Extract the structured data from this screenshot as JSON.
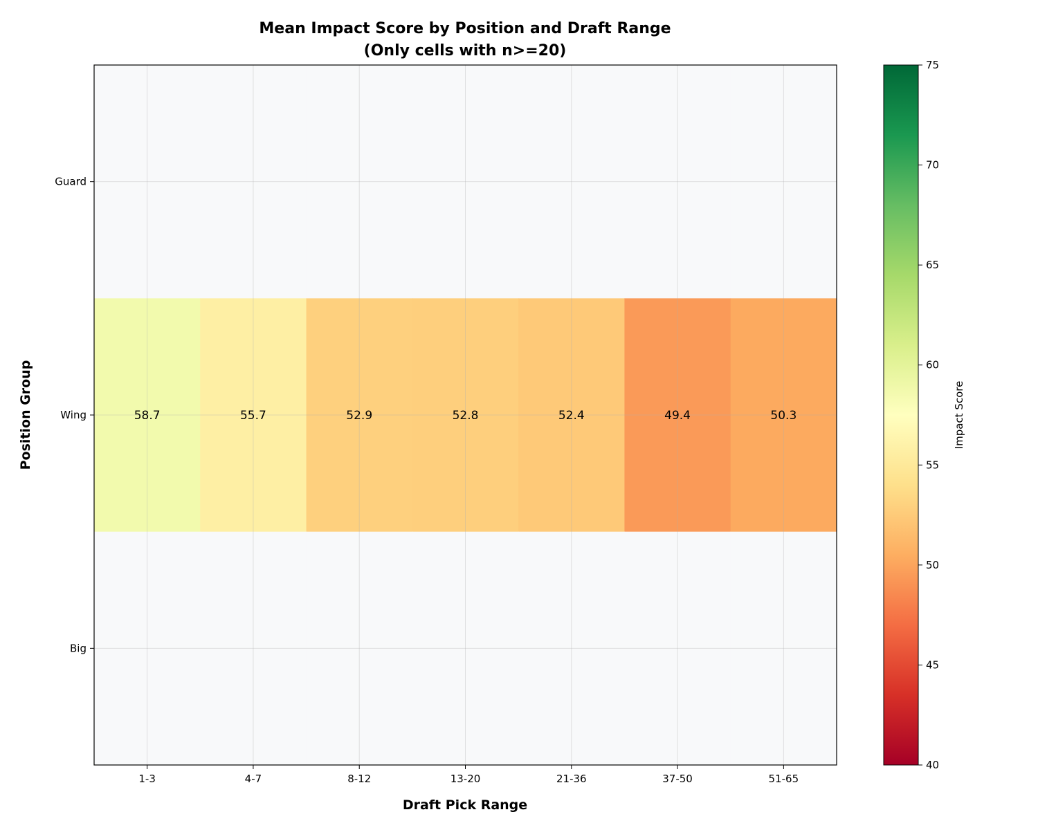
{
  "chart_data": {
    "type": "heatmap",
    "title": "Mean Impact Score by Position and Draft Range",
    "subtitle": "(Only cells with n>=20)",
    "xlabel": "Draft Pick Range",
    "ylabel": "Position Group",
    "x_categories": [
      "1-3",
      "4-7",
      "8-12",
      "13-20",
      "21-36",
      "37-50",
      "51-65"
    ],
    "y_categories": [
      "Guard",
      "Wing",
      "Big"
    ],
    "values": [
      [
        null,
        null,
        null,
        null,
        null,
        null,
        null
      ],
      [
        58.7,
        55.7,
        52.9,
        52.8,
        52.4,
        49.4,
        50.3
      ],
      [
        null,
        null,
        null,
        null,
        null,
        null,
        null
      ]
    ],
    "value_labels": [
      [
        null,
        null,
        null,
        null,
        null,
        null,
        null
      ],
      [
        "58.7",
        "55.7",
        "52.9",
        "52.8",
        "52.4",
        "49.4",
        "50.3"
      ],
      [
        null,
        null,
        null,
        null,
        null,
        null,
        null
      ]
    ],
    "colormap": "RdYlGn",
    "missing_color": "#f8f9fa",
    "colorbar": {
      "label": "Impact Score",
      "range": [
        40,
        75
      ],
      "ticks": [
        "40",
        "45",
        "50",
        "55",
        "60",
        "65",
        "70",
        "75"
      ]
    },
    "grid": true
  }
}
